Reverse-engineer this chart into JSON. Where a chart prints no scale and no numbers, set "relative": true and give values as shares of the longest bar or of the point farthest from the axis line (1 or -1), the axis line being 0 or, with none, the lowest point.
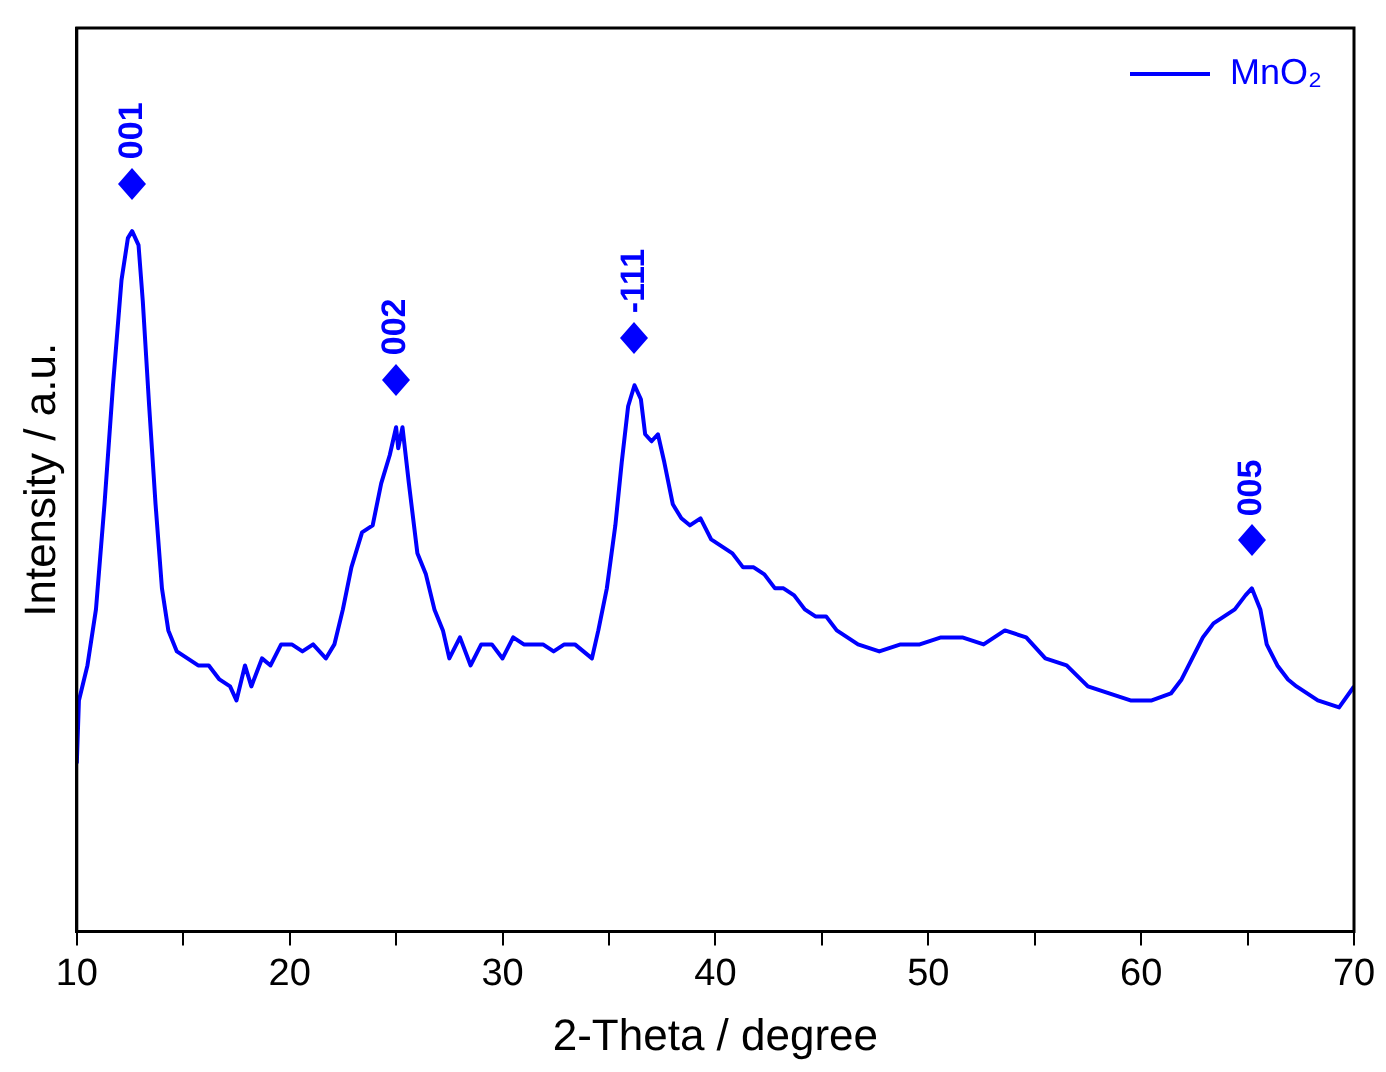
{
  "chart_data": {
    "type": "line",
    "xlabel": "2-Theta / degree",
    "ylabel": "Intensity / a.u.",
    "relative": true,
    "legend": "top right",
    "tick_labels": "x",
    "grid": false,
    "marker": "none",
    "line_style": "solid",
    "xlim": [
      10,
      70
    ],
    "xticks": [
      10,
      {
        "value": 15,
        "label": null
      },
      20,
      {
        "value": 25,
        "label": null
      },
      30,
      {
        "value": 35,
        "label": null
      },
      40,
      {
        "value": 45,
        "label": null
      },
      50,
      {
        "value": 55,
        "label": null
      },
      60,
      {
        "value": 65,
        "label": null
      },
      70
    ],
    "annotations": [
      {
        "text": "001",
        "x": 12.6,
        "y": 1
      },
      {
        "text": "002",
        "x": 25.0,
        "y": 0.72
      },
      {
        "text": "-111",
        "x": 36.2,
        "y": 0.78
      },
      {
        "text": "005",
        "x": 65.2,
        "y": 0.49
      }
    ],
    "series": [
      {
        "name": "MnO₂",
        "color": "#0000ff",
        "x": [
          10.0,
          10.1,
          10.5,
          10.9,
          11.3,
          11.7,
          12.1,
          12.4,
          12.6,
          12.9,
          13.1,
          13.4,
          13.7,
          14.0,
          14.3,
          14.7,
          15.2,
          15.7,
          16.2,
          16.7,
          17.2,
          17.5,
          17.9,
          18.2,
          18.7,
          19.1,
          19.6,
          20.1,
          20.6,
          21.1,
          21.7,
          22.1,
          22.5,
          22.9,
          23.4,
          23.9,
          24.3,
          24.7,
          25.0,
          25.1,
          25.3,
          25.6,
          26.0,
          26.4,
          26.8,
          27.2,
          27.5,
          28.0,
          28.5,
          29.0,
          29.5,
          30.0,
          30.5,
          31.0,
          31.4,
          31.9,
          32.4,
          32.9,
          33.4,
          34.2,
          34.5,
          34.9,
          35.3,
          35.6,
          35.9,
          36.2,
          36.5,
          36.7,
          37.0,
          37.3,
          37.6,
          38.0,
          38.4,
          38.8,
          39.3,
          39.8,
          40.3,
          40.8,
          41.3,
          41.8,
          42.3,
          42.8,
          43.2,
          43.7,
          44.2,
          44.7,
          45.2,
          45.7,
          46.2,
          46.7,
          47.7,
          48.7,
          49.6,
          50.6,
          51.6,
          52.6,
          53.6,
          54.6,
          55.5,
          56.5,
          57.5,
          58.5,
          59.5,
          60.5,
          61.4,
          61.9,
          62.4,
          62.9,
          63.4,
          63.9,
          64.4,
          64.9,
          65.2,
          65.6,
          65.9,
          66.4,
          66.9,
          67.3,
          68.3,
          69.3,
          70.0
        ],
        "values": [
          0.24,
          0.33,
          0.38,
          0.46,
          0.61,
          0.78,
          0.93,
          0.99,
          1,
          0.98,
          0.9,
          0.75,
          0.61,
          0.49,
          0.43,
          0.4,
          0.39,
          0.38,
          0.38,
          0.36,
          0.35,
          0.33,
          0.38,
          0.35,
          0.39,
          0.38,
          0.41,
          0.41,
          0.4,
          0.41,
          0.39,
          0.41,
          0.46,
          0.52,
          0.57,
          0.58,
          0.64,
          0.68,
          0.72,
          0.69,
          0.72,
          0.64,
          0.54,
          0.51,
          0.46,
          0.43,
          0.39,
          0.42,
          0.38,
          0.41,
          0.41,
          0.39,
          0.42,
          0.41,
          0.41,
          0.41,
          0.4,
          0.41,
          0.41,
          0.39,
          0.43,
          0.49,
          0.58,
          0.67,
          0.75,
          0.78,
          0.76,
          0.71,
          0.7,
          0.71,
          0.67,
          0.61,
          0.59,
          0.58,
          0.59,
          0.56,
          0.55,
          0.54,
          0.52,
          0.52,
          0.51,
          0.49,
          0.49,
          0.48,
          0.46,
          0.45,
          0.45,
          0.43,
          0.42,
          0.41,
          0.4,
          0.41,
          0.41,
          0.42,
          0.42,
          0.41,
          0.43,
          0.42,
          0.39,
          0.38,
          0.35,
          0.34,
          0.33,
          0.33,
          0.34,
          0.36,
          0.39,
          0.42,
          0.44,
          0.45,
          0.46,
          0.48,
          0.49,
          0.46,
          0.41,
          0.38,
          0.36,
          0.35,
          0.33,
          0.32,
          0.35
        ]
      }
    ]
  }
}
